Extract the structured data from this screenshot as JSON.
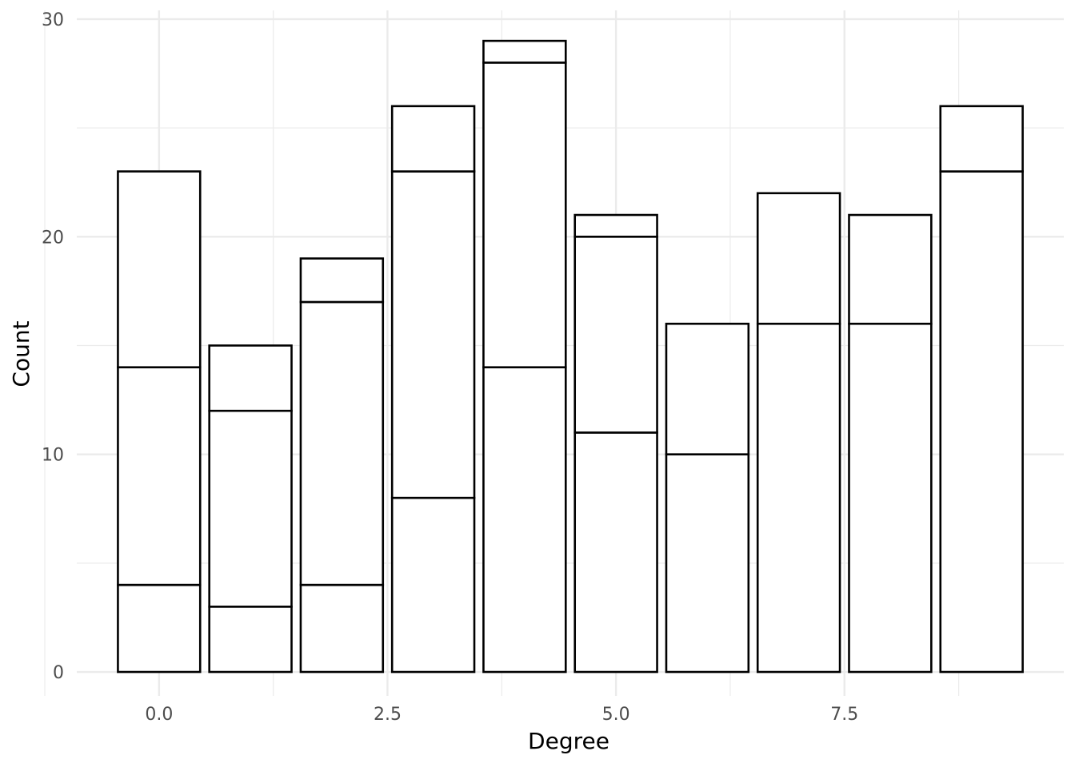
{
  "chart_data": {
    "type": "bar",
    "stacked": true,
    "title": "",
    "xlabel": "Degree",
    "ylabel": "Count",
    "xlim": [
      -0.9,
      9.9
    ],
    "ylim": [
      -1.1,
      30.4
    ],
    "x_ticks": [
      "0.0",
      "2.5",
      "5.0",
      "7.5"
    ],
    "y_ticks": [
      "0",
      "10",
      "20",
      "30"
    ],
    "grid": true,
    "bar_fill": "#ffffff",
    "bar_outline": "#000000",
    "grid_color": "#ebebeb",
    "bars": [
      {
        "x": 0,
        "segments": [
          4,
          10,
          9
        ]
      },
      {
        "x": 1,
        "segments": [
          3,
          9,
          3
        ]
      },
      {
        "x": 2,
        "segments": [
          4,
          13,
          2
        ]
      },
      {
        "x": 3,
        "segments": [
          8,
          15,
          3
        ]
      },
      {
        "x": 4,
        "segments": [
          14,
          14,
          1
        ]
      },
      {
        "x": 5,
        "segments": [
          11,
          9,
          1
        ]
      },
      {
        "x": 6,
        "segments": [
          10,
          6
        ]
      },
      {
        "x": 7,
        "segments": [
          16,
          6
        ]
      },
      {
        "x": 8,
        "segments": [
          16,
          5
        ]
      },
      {
        "x": 9,
        "segments": [
          23,
          3
        ]
      }
    ]
  }
}
